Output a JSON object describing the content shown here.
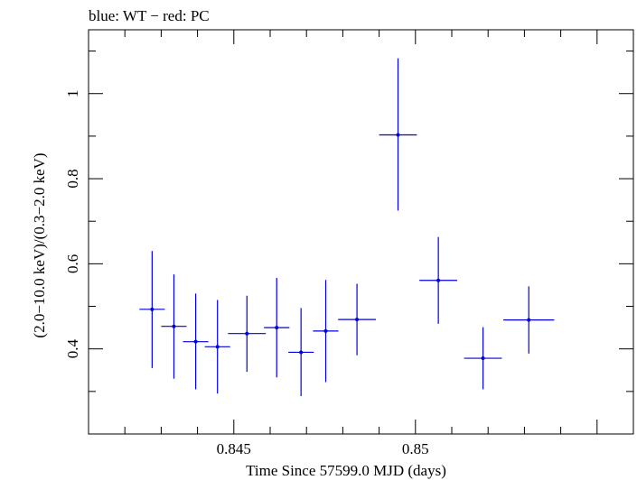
{
  "chart_data": {
    "type": "scatter",
    "title": "blue: WT − red: PC",
    "xlabel": "Time Since 57599.0 MJD (days)",
    "ylabel": "(2.0−10.0 keV)/(0.3−2.0 keV)",
    "xlim": [
      0.841,
      0.856
    ],
    "ylim": [
      0.2,
      1.15
    ],
    "x_ticks": [
      0.845,
      0.85
    ],
    "x_tick_labels": [
      "0.845",
      "0.85"
    ],
    "y_ticks": [
      0.4,
      0.6,
      0.8,
      1.0
    ],
    "y_tick_labels": [
      "0.4",
      "0.6",
      "0.8",
      "1"
    ],
    "grid": false,
    "series": [
      {
        "color": "#0000e0",
        "points": [
          {
            "x": 0.84275,
            "y": 0.493,
            "xerr": 0.00035,
            "yerr_low": 0.138,
            "yerr_high": 0.137
          },
          {
            "x": 0.84335,
            "y": 0.453,
            "xerr": 0.00035,
            "yerr_low": 0.123,
            "yerr_high": 0.122
          },
          {
            "x": 0.84395,
            "y": 0.417,
            "xerr": 0.00035,
            "yerr_low": 0.112,
            "yerr_high": 0.113
          },
          {
            "x": 0.84455,
            "y": 0.405,
            "xerr": 0.00035,
            "yerr_low": 0.11,
            "yerr_high": 0.11
          },
          {
            "x": 0.84536,
            "y": 0.436,
            "xerr": 0.00052,
            "yerr_low": 0.09,
            "yerr_high": 0.089
          },
          {
            "x": 0.84618,
            "y": 0.45,
            "xerr": 0.00035,
            "yerr_low": 0.117,
            "yerr_high": 0.117
          },
          {
            "x": 0.84685,
            "y": 0.392,
            "xerr": 0.00035,
            "yerr_low": 0.103,
            "yerr_high": 0.104
          },
          {
            "x": 0.84753,
            "y": 0.442,
            "xerr": 0.00035,
            "yerr_low": 0.12,
            "yerr_high": 0.12
          },
          {
            "x": 0.84839,
            "y": 0.469,
            "xerr": 0.00052,
            "yerr_low": 0.084,
            "yerr_high": 0.084
          },
          {
            "x": 0.84952,
            "y": 0.903,
            "xerr": 0.00052,
            "yerr_low": 0.178,
            "yerr_high": 0.18
          },
          {
            "x": 0.85063,
            "y": 0.561,
            "xerr": 0.00052,
            "yerr_low": 0.102,
            "yerr_high": 0.102
          },
          {
            "x": 0.85186,
            "y": 0.378,
            "xerr": 0.00052,
            "yerr_low": 0.073,
            "yerr_high": 0.073
          },
          {
            "x": 0.85312,
            "y": 0.468,
            "xerr": 0.0007,
            "yerr_low": 0.079,
            "yerr_high": 0.079
          }
        ]
      }
    ]
  }
}
